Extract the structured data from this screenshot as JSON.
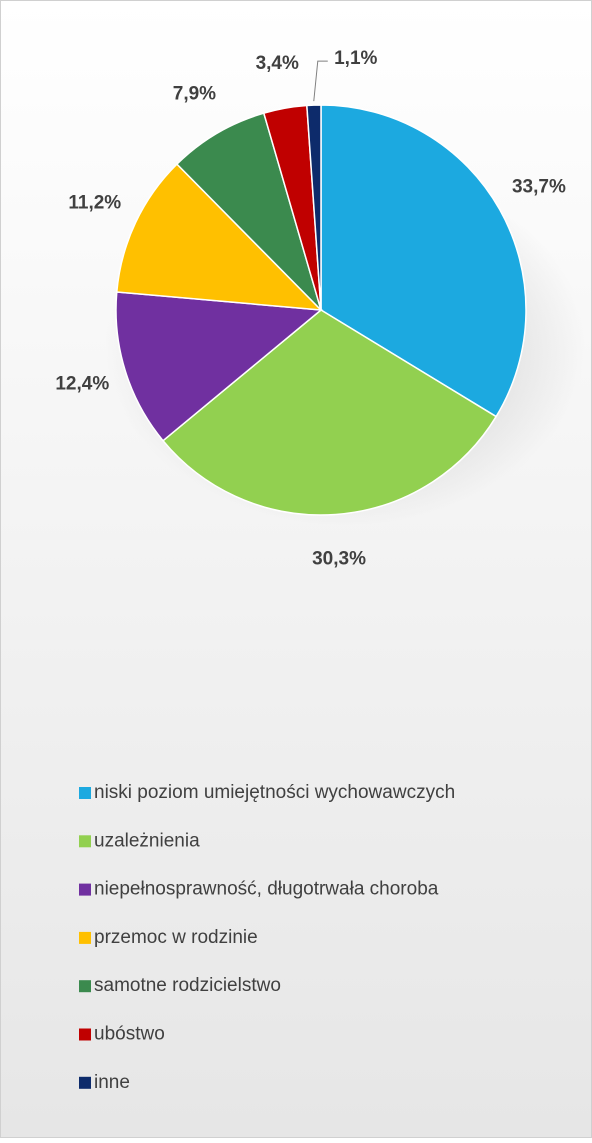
{
  "chart_data": {
    "type": "pie",
    "categories": [
      "niski poziom umiejętności wychowawczych",
      "uzależnienia",
      "niepełnosprawność, długotrwała choroba",
      "przemoc w rodzinie",
      "samotne rodzicielstwo",
      "ubóstwo",
      "inne"
    ],
    "values": [
      33.7,
      30.3,
      12.4,
      11.2,
      7.9,
      3.4,
      1.1
    ],
    "value_labels": [
      "33,7%",
      "30,3%",
      "12,4%",
      "11,2%",
      "7,9%",
      "3,4%",
      "1,1%"
    ],
    "colors": [
      "#1ca9e0",
      "#92d050",
      "#7030a0",
      "#ffc000",
      "#3b8a4e",
      "#c00000",
      "#0d2b6b"
    ],
    "legend": "bottom"
  }
}
